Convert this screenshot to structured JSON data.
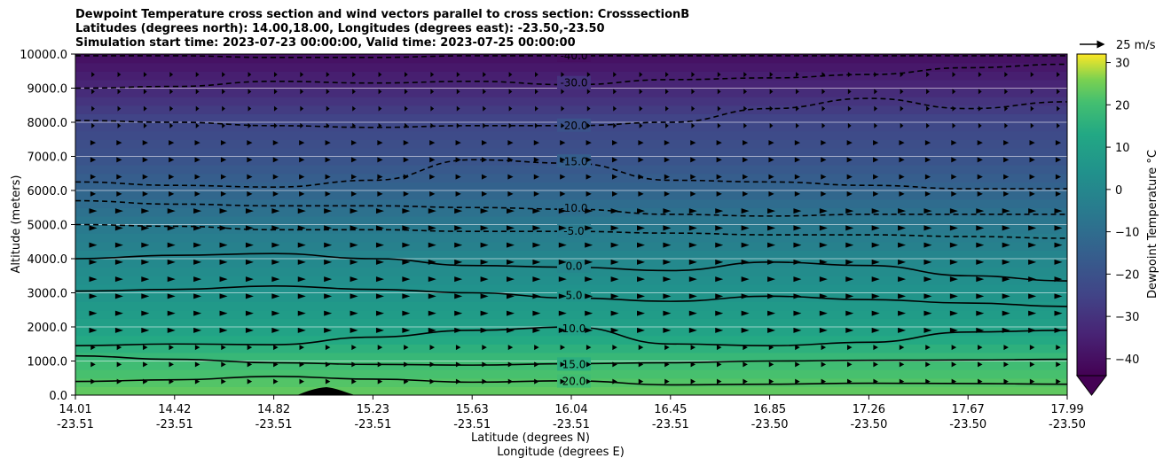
{
  "chart_data": {
    "type": "contourf",
    "title_lines": [
      "Dewpoint Temperature cross section and wind vectors parallel to cross section: CrosssectionB",
      "Latitudes (degrees north): 14.00,18.00, Longitudes (degrees east): -23.50,-23.50",
      "Simulation start time: 2023-07-23 00:00:00, Valid time: 2023-07-25 00:00:00"
    ],
    "xlabel_lines": [
      "Latitude (degrees N)",
      "Longitude (degrees E)"
    ],
    "ylabel": "Altitude (meters)",
    "ylim": [
      0,
      10000
    ],
    "yticks": [
      "0.0",
      "1000.0",
      "2000.0",
      "3000.0",
      "4000.0",
      "5000.0",
      "6000.0",
      "7000.0",
      "8000.0",
      "9000.0",
      "10000.0"
    ],
    "xlim": [
      14.01,
      17.99
    ],
    "xticks": [
      {
        "lat": "14.01",
        "lon": "-23.51"
      },
      {
        "lat": "14.42",
        "lon": "-23.51"
      },
      {
        "lat": "14.82",
        "lon": "-23.51"
      },
      {
        "lat": "15.23",
        "lon": "-23.51"
      },
      {
        "lat": "15.63",
        "lon": "-23.51"
      },
      {
        "lat": "16.04",
        "lon": "-23.51"
      },
      {
        "lat": "16.45",
        "lon": "-23.51"
      },
      {
        "lat": "16.85",
        "lon": "-23.50"
      },
      {
        "lat": "17.26",
        "lon": "-23.50"
      },
      {
        "lat": "17.67",
        "lon": "-23.50"
      },
      {
        "lat": "17.99",
        "lon": "-23.50"
      }
    ],
    "grid": "horizontal",
    "colorbar": {
      "label": "Dewpoint Temperature  °C",
      "range": [
        -44,
        32
      ],
      "ticks": [
        "−40",
        "−30",
        "−20",
        "−10",
        "0",
        "10",
        "20",
        "30"
      ],
      "tick_values": [
        -40,
        -30,
        -20,
        -10,
        0,
        10,
        20,
        30
      ],
      "colormap": "viridis",
      "extend": "min"
    },
    "quiver_key": {
      "label": "25 m/s",
      "speed": 25
    },
    "contours": [
      {
        "level": 20,
        "label": "20.0",
        "style": "solid",
        "alt": [
          400,
          450,
          550,
          470,
          380,
          420,
          300,
          320,
          350,
          340,
          320
        ]
      },
      {
        "level": 15,
        "label": "15.0",
        "style": "solid",
        "alt": [
          1150,
          1050,
          950,
          900,
          880,
          920,
          950,
          1000,
          1020,
          1030,
          1050
        ]
      },
      {
        "level": 10,
        "label": "10.0",
        "style": "solid",
        "alt": [
          1450,
          1500,
          1480,
          1700,
          1900,
          2000,
          1500,
          1450,
          1550,
          1850,
          1900
        ]
      },
      {
        "level": 5,
        "label": "5.0",
        "style": "solid",
        "alt": [
          3050,
          3100,
          3200,
          3100,
          3000,
          2850,
          2750,
          2900,
          2800,
          2700,
          2600
        ]
      },
      {
        "level": 0,
        "label": "0.0",
        "style": "solid",
        "alt": [
          4000,
          4100,
          4150,
          4000,
          3800,
          3750,
          3650,
          3900,
          3800,
          3500,
          3350
        ]
      },
      {
        "level": -5,
        "label": "-5.0",
        "style": "dashed",
        "alt": [
          5000,
          4950,
          4850,
          4850,
          4800,
          4800,
          4750,
          4700,
          4700,
          4650,
          4600
        ]
      },
      {
        "level": -10,
        "label": "-10.0",
        "style": "dashed",
        "alt": [
          5700,
          5600,
          5550,
          5550,
          5500,
          5450,
          5300,
          5250,
          5300,
          5300,
          5300
        ]
      },
      {
        "level": -15,
        "label": "-15.0",
        "style": "dashed",
        "alt": [
          6250,
          6150,
          6100,
          6300,
          6900,
          6800,
          6300,
          6250,
          6150,
          6050,
          6050
        ]
      },
      {
        "level": -20,
        "label": "-20.0",
        "style": "dashed",
        "alt": [
          8050,
          8000,
          7900,
          7850,
          7900,
          7900,
          8000,
          8400,
          8700,
          8400,
          8600
        ]
      },
      {
        "level": -30,
        "label": "-30.0",
        "style": "dashed",
        "alt": [
          9000,
          9050,
          9200,
          9150,
          9200,
          9100,
          9250,
          9300,
          9400,
          9600,
          9700
        ]
      },
      {
        "level": -40,
        "label": "-40.0",
        "style": "dashed",
        "alt": [
          9950,
          9950,
          9900,
          9900,
          9950,
          9950,
          9950,
          9950,
          9950,
          9950,
          9950
        ]
      }
    ],
    "dewpoint_profile": [
      {
        "alt": 0,
        "value": 24
      },
      {
        "alt": 1000,
        "value": 19
      },
      {
        "alt": 2000,
        "value": 10
      },
      {
        "alt": 3000,
        "value": 5
      },
      {
        "alt": 4000,
        "value": 0
      },
      {
        "alt": 5000,
        "value": -6
      },
      {
        "alt": 6000,
        "value": -13
      },
      {
        "alt": 7000,
        "value": -20
      },
      {
        "alt": 8000,
        "value": -24
      },
      {
        "alt": 9000,
        "value": -33
      },
      {
        "alt": 10000,
        "value": -40
      }
    ]
  }
}
